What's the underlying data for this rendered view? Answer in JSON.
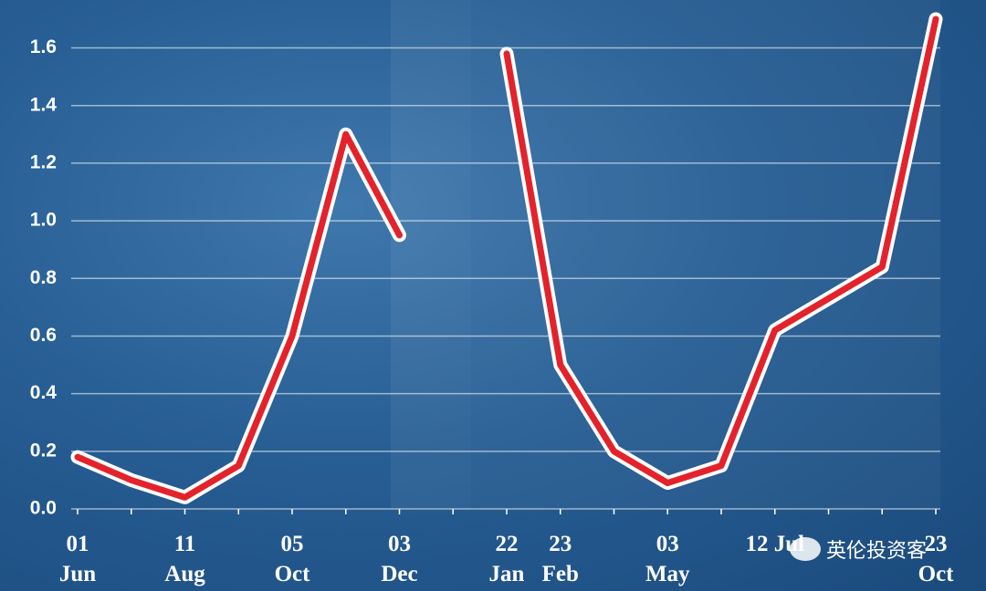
{
  "chart_data": {
    "type": "line",
    "categories": [
      "01 Jun",
      null,
      "11 Aug",
      null,
      "05 Oct",
      null,
      "03 Dec",
      null,
      "22 Jan",
      "23 Feb",
      null,
      "03 May",
      null,
      "12 Jul",
      null,
      null,
      "23 Oct"
    ],
    "values": [
      0.18,
      0.1,
      0.04,
      0.15,
      0.6,
      1.3,
      0.95,
      null,
      1.58,
      0.5,
      0.2,
      0.09,
      0.15,
      0.62,
      0.73,
      0.84,
      1.7
    ],
    "color": "#e3222b",
    "ylim": [
      0,
      1.76
    ],
    "yticks": [
      {
        "value": 0,
        "label": "0.0"
      },
      0.2,
      0.4,
      0.6,
      0.8,
      {
        "value": 1,
        "label": "1.0"
      },
      1.2,
      1.4,
      1.6
    ],
    "grid": true,
    "watermark": "英伦投资客"
  }
}
